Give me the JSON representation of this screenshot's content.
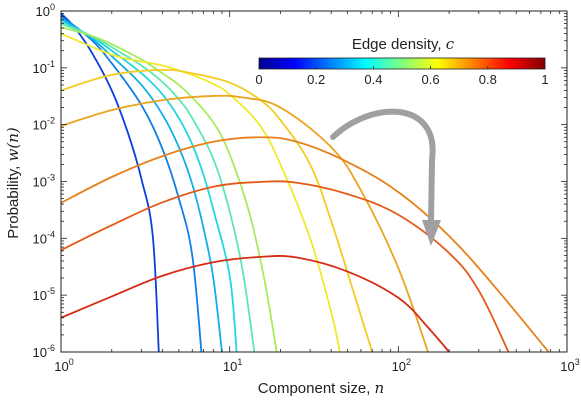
{
  "chart_data": {
    "type": "line",
    "xscale": "log",
    "yscale": "log",
    "xlim": [
      1,
      1000
    ],
    "ylim": [
      1e-06,
      1
    ],
    "grid": false,
    "x_ticks": [
      {
        "value": 1,
        "base": "10",
        "exp": "0"
      },
      {
        "value": 10,
        "base": "10",
        "exp": "1"
      },
      {
        "value": 100,
        "base": "10",
        "exp": "2"
      },
      {
        "value": 1000,
        "base": "10",
        "exp": "3"
      }
    ],
    "y_ticks": [
      {
        "value": 1,
        "base": "10",
        "exp": "0"
      },
      {
        "value": 0.1,
        "base": "10",
        "exp": "-1"
      },
      {
        "value": 0.01,
        "base": "10",
        "exp": "-2"
      },
      {
        "value": 0.001,
        "base": "10",
        "exp": "-3"
      },
      {
        "value": 0.0001,
        "base": "10",
        "exp": "-4"
      },
      {
        "value": 1e-05,
        "base": "10",
        "exp": "-5"
      },
      {
        "value": 1e-06,
        "base": "10",
        "exp": "-6"
      }
    ],
    "xlabel": {
      "text": "Component size, ",
      "var": "n"
    },
    "ylabel": {
      "text": "Probability,  ",
      "var": "w(n)"
    },
    "colorbar": {
      "title": "Edge density, ",
      "var": "c",
      "range": [
        0,
        1
      ],
      "colormap": "jet",
      "ticks": [
        "0",
        "0.2",
        "0.4",
        "0.6",
        "0.8",
        "1"
      ]
    },
    "annotation": {
      "type": "curved-arrow",
      "color": "#a0a0a0",
      "meaning": "increasing c"
    },
    "series": [
      {
        "c": 0.1,
        "color": "#0a3fdc",
        "points": [
          [
            1,
            0.904
          ],
          [
            1.2,
            0.52
          ],
          [
            1.5,
            0.2
          ],
          [
            2,
            0.04
          ],
          [
            2.5,
            0.007
          ],
          [
            3,
            0.0011
          ],
          [
            3.5,
            0.00011
          ],
          [
            3.8,
            1e-06
          ]
        ]
      },
      {
        "c": 0.2,
        "color": "#0f7fe8",
        "points": [
          [
            1,
            0.82
          ],
          [
            1.5,
            0.32
          ],
          [
            2,
            0.12
          ],
          [
            3,
            0.022
          ],
          [
            4,
            0.0037
          ],
          [
            5,
            0.0005
          ],
          [
            6,
            5e-05
          ],
          [
            6.8,
            1e-06
          ]
        ]
      },
      {
        "c": 0.3,
        "color": "#13aee8",
        "points": [
          [
            1,
            0.74
          ],
          [
            1.5,
            0.34
          ],
          [
            2,
            0.16
          ],
          [
            3,
            0.05
          ],
          [
            4,
            0.015
          ],
          [
            5,
            0.004
          ],
          [
            6,
            0.0009
          ],
          [
            7,
            0.00015
          ],
          [
            8,
            2e-05
          ],
          [
            9,
            1e-06
          ]
        ]
      },
      {
        "c": 0.4,
        "color": "#22d6df",
        "points": [
          [
            1,
            0.67
          ],
          [
            1.5,
            0.36
          ],
          [
            2,
            0.2
          ],
          [
            3,
            0.08
          ],
          [
            4,
            0.034
          ],
          [
            5,
            0.013
          ],
          [
            6,
            0.0045
          ],
          [
            7,
            0.0013
          ],
          [
            8,
            0.00032
          ],
          [
            10,
            2.2e-05
          ],
          [
            11,
            1e-06
          ]
        ]
      },
      {
        "c": 0.5,
        "color": "#5ee8b0",
        "points": [
          [
            1,
            0.6
          ],
          [
            1.5,
            0.37
          ],
          [
            2,
            0.23
          ],
          [
            3,
            0.11
          ],
          [
            4,
            0.056
          ],
          [
            5,
            0.028
          ],
          [
            6,
            0.013
          ],
          [
            8,
            0.0025
          ],
          [
            10,
            0.0003
          ],
          [
            12,
            2.5e-05
          ],
          [
            14,
            1e-06
          ]
        ]
      },
      {
        "c": 0.6,
        "color": "#a6ec5c",
        "points": [
          [
            1,
            0.52
          ],
          [
            1.5,
            0.37
          ],
          [
            2,
            0.26
          ],
          [
            3,
            0.14
          ],
          [
            4,
            0.08
          ],
          [
            5,
            0.05
          ],
          [
            6,
            0.03
          ],
          [
            8,
            0.011
          ],
          [
            10,
            0.003
          ],
          [
            13,
            0.0003
          ],
          [
            16,
            2e-05
          ],
          [
            19,
            1e-06
          ]
        ]
      },
      {
        "c": 0.7,
        "color": "#f0ea2e",
        "points": [
          [
            1,
            0.4
          ],
          [
            2,
            0.17
          ],
          [
            3,
            0.13
          ],
          [
            4,
            0.11
          ],
          [
            5,
            0.09
          ],
          [
            6,
            0.075
          ],
          [
            8,
            0.052
          ],
          [
            10,
            0.034
          ],
          [
            15,
            0.01
          ],
          [
            20,
            0.002
          ],
          [
            30,
            0.0001
          ],
          [
            40,
            5e-06
          ],
          [
            45,
            1e-06
          ]
        ]
      },
      {
        "c": 0.75,
        "color": "#f2cc22",
        "points": [
          [
            1,
            0.04
          ],
          [
            2,
            0.075
          ],
          [
            4,
            0.092
          ],
          [
            6,
            0.08
          ],
          [
            10,
            0.055
          ],
          [
            15,
            0.028
          ],
          [
            20,
            0.012
          ],
          [
            30,
            0.002
          ],
          [
            40,
            0.0002
          ],
          [
            55,
            1e-05
          ],
          [
            70,
            1e-06
          ]
        ]
      },
      {
        "c": 0.8,
        "color": "#eaa41e",
        "points": [
          [
            1,
            0.0095
          ],
          [
            2,
            0.018
          ],
          [
            4,
            0.027
          ],
          [
            8,
            0.032
          ],
          [
            12,
            0.03
          ],
          [
            20,
            0.02
          ],
          [
            40,
            0.004
          ],
          [
            60,
            0.0007
          ],
          [
            100,
            3e-05
          ],
          [
            150,
            1e-06
          ]
        ]
      },
      {
        "c": 0.85,
        "color": "#e8801a",
        "points": [
          [
            1,
            0.00042
          ],
          [
            2,
            0.0012
          ],
          [
            4,
            0.0028
          ],
          [
            8,
            0.005
          ],
          [
            15,
            0.006
          ],
          [
            25,
            0.005
          ],
          [
            50,
            0.0022
          ],
          [
            100,
            0.00065
          ],
          [
            200,
            0.00011
          ],
          [
            400,
            1.1e-05
          ],
          [
            1000,
            4e-07
          ]
        ]
      },
      {
        "c": 0.9,
        "color": "#e55a18",
        "points": [
          [
            1,
            6.2e-05
          ],
          [
            2,
            0.00017
          ],
          [
            4,
            0.00043
          ],
          [
            8,
            0.00081
          ],
          [
            15,
            0.00098
          ],
          [
            25,
            0.00095
          ],
          [
            50,
            0.0006
          ],
          [
            100,
            0.00026
          ],
          [
            200,
            5.5e-05
          ],
          [
            300,
            1.2e-05
          ],
          [
            450,
            1e-06
          ]
        ]
      },
      {
        "c": 0.95,
        "color": "#d62c16",
        "points": [
          [
            1,
            4e-06
          ],
          [
            2,
            9.5e-06
          ],
          [
            4,
            2.2e-05
          ],
          [
            8,
            3.8e-05
          ],
          [
            15,
            4.7e-05
          ],
          [
            25,
            4.6e-05
          ],
          [
            50,
            2.6e-05
          ],
          [
            100,
            9e-06
          ],
          [
            150,
            2.7e-06
          ],
          [
            200,
            1e-06
          ]
        ]
      }
    ]
  }
}
